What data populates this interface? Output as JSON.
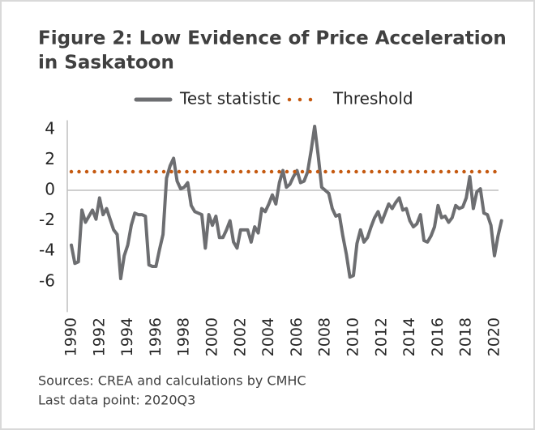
{
  "chart_data": {
    "type": "line",
    "title": [
      "Figure 2: Low Evidence of Price Acceleration",
      "in Saskatoon"
    ],
    "categories": [
      "1990",
      null,
      null,
      null,
      null,
      null,
      null,
      null,
      "1992",
      null,
      null,
      null,
      null,
      null,
      null,
      null,
      "1994",
      null,
      null,
      null,
      null,
      null,
      null,
      null,
      "1996",
      null,
      null,
      null,
      null,
      null,
      null,
      null,
      "1998",
      null,
      null,
      null,
      null,
      null,
      null,
      null,
      "2000",
      null,
      null,
      null,
      null,
      null,
      null,
      null,
      "2002",
      null,
      null,
      null,
      null,
      null,
      null,
      null,
      "2004",
      null,
      null,
      null,
      null,
      null,
      null,
      null,
      "2006",
      null,
      null,
      null,
      null,
      null,
      null,
      null,
      "2008",
      null,
      null,
      null,
      null,
      null,
      null,
      null,
      "2010",
      null,
      null,
      null,
      null,
      null,
      null,
      null,
      "2012",
      null,
      null,
      null,
      null,
      null,
      null,
      null,
      "2014",
      null,
      null,
      null,
      null,
      null,
      null,
      null,
      "2016",
      null,
      null,
      null,
      null,
      null,
      null,
      null,
      "2018",
      null,
      null,
      null,
      null,
      null,
      null,
      null,
      "2020",
      null,
      null
    ],
    "series": [
      {
        "name": "Test statistic",
        "color": "#6d6e71",
        "style": "solid",
        "values": [
          -3.6,
          -4.8,
          -4.7,
          -1.3,
          -2.1,
          -1.7,
          -1.3,
          -1.9,
          -0.5,
          -1.6,
          -1.2,
          -1.9,
          -2.6,
          -2.9,
          -5.8,
          -4.3,
          -3.6,
          -2.3,
          -1.5,
          -1.6,
          -1.6,
          -1.7,
          -4.9,
          -5.0,
          -5.0,
          -3.9,
          -2.9,
          0.8,
          1.6,
          2.1,
          0.6,
          0.1,
          0.2,
          0.5,
          -1.0,
          -1.4,
          -1.5,
          -1.6,
          -3.8,
          -1.6,
          -2.3,
          -1.7,
          -3.1,
          -3.1,
          -2.6,
          -2.0,
          -3.4,
          -3.8,
          -2.6,
          -2.6,
          -2.6,
          -3.4,
          -2.4,
          -2.8,
          -1.2,
          -1.4,
          -0.9,
          -0.3,
          -0.9,
          0.5,
          1.3,
          0.2,
          0.4,
          0.9,
          1.3,
          0.5,
          0.6,
          1.2,
          2.6,
          4.2,
          2.3,
          0.2,
          0.0,
          -0.2,
          -1.2,
          -1.7,
          -1.6,
          -3.0,
          -4.2,
          -5.7,
          -5.6,
          -3.5,
          -2.6,
          -3.4,
          -3.1,
          -2.4,
          -1.8,
          -1.4,
          -2.1,
          -1.5,
          -0.9,
          -1.2,
          -0.8,
          -0.5,
          -1.3,
          -1.2,
          -2.0,
          -2.4,
          -2.2,
          -1.6,
          -3.3,
          -3.4,
          -3.0,
          -2.4,
          -1.0,
          -1.8,
          -1.7,
          -2.1,
          -1.8,
          -1.0,
          -1.2,
          -1.1,
          -0.5,
          0.9,
          -1.2,
          -0.1,
          0.1,
          -1.5,
          -1.6,
          -2.3,
          -4.3,
          -3.0,
          -2.0
        ]
      },
      {
        "name": "Threshold",
        "color": "#c55a11",
        "style": "dotted",
        "values": [
          1.22,
          1.22,
          1.22,
          1.22,
          1.22,
          1.22,
          1.22,
          1.22,
          1.22,
          1.22,
          1.22,
          1.22,
          1.22,
          1.22,
          1.22,
          1.22,
          1.22,
          1.22,
          1.22,
          1.22,
          1.22,
          1.22,
          1.22,
          1.22,
          1.22,
          1.22,
          1.22,
          1.22,
          1.22,
          1.22,
          1.22,
          1.22,
          1.22,
          1.22,
          1.22,
          1.22,
          1.22,
          1.22,
          1.22,
          1.22,
          1.22,
          1.22,
          1.22,
          1.22,
          1.22,
          1.22,
          1.22,
          1.22,
          1.22,
          1.22,
          1.22,
          1.22,
          1.22,
          1.22,
          1.22,
          1.22,
          1.22,
          1.22,
          1.22,
          1.22,
          1.22,
          1.22,
          1.22,
          1.22,
          1.22,
          1.22,
          1.22,
          1.22,
          1.22,
          1.22,
          1.22,
          1.22,
          1.22,
          1.22,
          1.22,
          1.22,
          1.22,
          1.22,
          1.22,
          1.22,
          1.22,
          1.22,
          1.22,
          1.22,
          1.22,
          1.22,
          1.22,
          1.22,
          1.22,
          1.22,
          1.22,
          1.22,
          1.22,
          1.22,
          1.22,
          1.22,
          1.22,
          1.22,
          1.22,
          1.22,
          1.22,
          1.22,
          1.22,
          1.22,
          1.22,
          1.22,
          1.22,
          1.22,
          1.22,
          1.22,
          1.22,
          1.22,
          1.22,
          1.22,
          1.22,
          1.22,
          1.22,
          1.22,
          1.22,
          1.22,
          1.22,
          1.22,
          1.22
        ]
      }
    ],
    "ylim": [
      -8,
      4.6
    ],
    "yticks": [
      4,
      2,
      0,
      -2,
      -4,
      -6
    ],
    "legend": "top",
    "source": "Sources: CREA and calculations by CMHC",
    "note": "Last data point: 2020Q3"
  }
}
